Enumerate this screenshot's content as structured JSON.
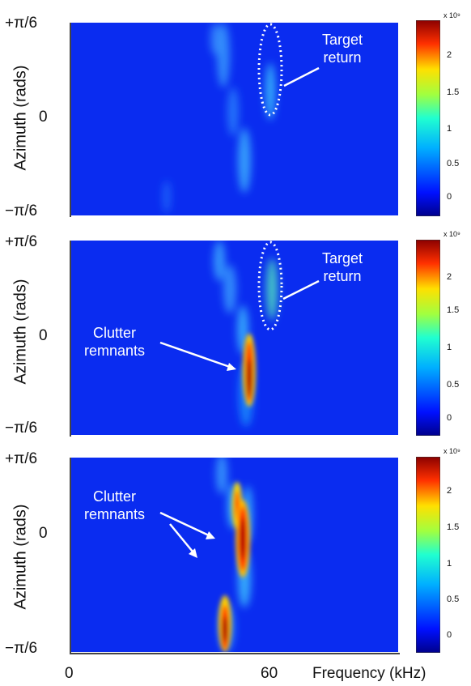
{
  "figure": {
    "xlabel": "Frequency (kHz)",
    "x_ticks": [
      "0",
      "60"
    ],
    "colorbar_ticks": [
      "2",
      "1.5",
      "1",
      "0.5",
      "0"
    ],
    "colorbar_exponent": "x 10⁹",
    "colors": {
      "background": "#0a2cf0",
      "annotation": "#ffffff"
    }
  },
  "panels": [
    {
      "ylabel": "Azimuth (rads)",
      "y_ticks": [
        "+π/6",
        "0",
        "−π/6"
      ],
      "annotations": [
        {
          "text_line1": "Target",
          "text_line2": "return"
        }
      ]
    },
    {
      "ylabel": "Azimuth (rads)",
      "y_ticks": [
        "+π/6",
        "0",
        "−π/6"
      ],
      "annotations": [
        {
          "text_line1": "Target",
          "text_line2": "return"
        },
        {
          "text_line1": "Clutter",
          "text_line2": "remnants"
        }
      ]
    },
    {
      "ylabel": "Azimuth (rads)",
      "y_ticks": [
        "+π/6",
        "0",
        "−π/6"
      ],
      "annotations": [
        {
          "text_line1": "Clutter",
          "text_line2": "remnants"
        }
      ]
    }
  ],
  "chart_data": [
    {
      "type": "heatmap",
      "xlabel": "Frequency (kHz)",
      "ylabel": "Azimuth (rads)",
      "x_ticks": [
        "0",
        "60"
      ],
      "y_ticks": [
        "+π/6",
        "0",
        "−π/6"
      ],
      "colorbar": {
        "range": [
          0,
          2.3
        ],
        "ticks": [
          0,
          0.5,
          1,
          1.5,
          2
        ],
        "exponent": "x 10^9"
      },
      "hotspots": [
        {
          "freq_khz": 52,
          "azimuth_frac": 0.45,
          "intensity": 0.45
        },
        {
          "freq_khz": 55,
          "azimuth_frac": 0.1,
          "intensity": 0.5
        },
        {
          "freq_khz": 59,
          "azimuth_frac": 0.55,
          "intensity": 0.35
        },
        {
          "freq_khz": 54,
          "azimuth_frac": -0.35,
          "intensity": 0.4
        },
        {
          "freq_khz": 35,
          "azimuth_frac": -0.75,
          "intensity": 0.2
        }
      ],
      "annotations": [
        "Target return"
      ]
    },
    {
      "type": "heatmap",
      "xlabel": "Frequency (kHz)",
      "ylabel": "Azimuth (rads)",
      "colorbar": {
        "range": [
          0,
          2.3
        ],
        "ticks": [
          0,
          0.5,
          1,
          1.5,
          2
        ],
        "exponent": "x 10^9"
      },
      "hotspots": [
        {
          "freq_khz": 52,
          "azimuth_frac": 0.75,
          "intensity": 0.5
        },
        {
          "freq_khz": 59,
          "azimuth_frac": 0.55,
          "intensity": 0.45
        },
        {
          "freq_khz": 56,
          "azimuth_frac": -0.2,
          "intensity": 0.95
        },
        {
          "freq_khz": 56,
          "azimuth_frac": -0.55,
          "intensity": 0.85
        },
        {
          "freq_khz": 55,
          "azimuth_frac": 0.1,
          "intensity": 0.45
        }
      ],
      "annotations": [
        "Target return",
        "Clutter remnants"
      ]
    },
    {
      "type": "heatmap",
      "xlabel": "Frequency (kHz)",
      "ylabel": "Azimuth (rads)",
      "colorbar": {
        "range": [
          0,
          2.3
        ],
        "ticks": [
          0,
          0.5,
          1,
          1.5,
          2
        ],
        "exponent": "x 10^9"
      },
      "hotspots": [
        {
          "freq_khz": 53,
          "azimuth_frac": 0.5,
          "intensity": 0.75
        },
        {
          "freq_khz": 55,
          "azimuth_frac": 0.0,
          "intensity": 0.95
        },
        {
          "freq_khz": 54,
          "azimuth_frac": -0.3,
          "intensity": 0.6
        },
        {
          "freq_khz": 49,
          "azimuth_frac": -0.8,
          "intensity": 0.95
        },
        {
          "freq_khz": 52,
          "azimuth_frac": 0.8,
          "intensity": 0.35
        }
      ],
      "annotations": [
        "Clutter remnants"
      ]
    }
  ]
}
